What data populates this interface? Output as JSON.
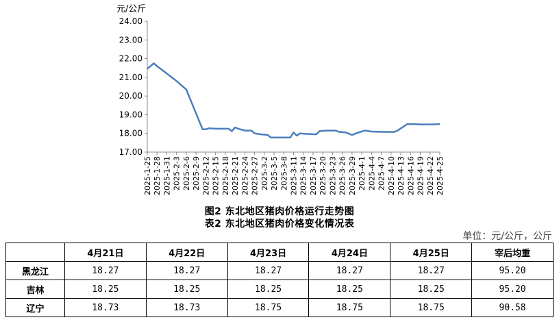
{
  "chart_data": {
    "type": "line",
    "ylabel": "元/公斤",
    "ylim": [
      17.0,
      24.0
    ],
    "yticks": [
      "24.00",
      "23.00",
      "22.00",
      "21.00",
      "20.00",
      "19.00",
      "18.00",
      "17.00"
    ],
    "x_ticks": [
      "2025-1-25",
      "2025-1-28",
      "2025-1-31",
      "2025-2-3",
      "2025-2-6",
      "2025-2-9",
      "2025-2-12",
      "2025-2-15",
      "2025-2-18",
      "2025-2-21",
      "2025-2-24",
      "2025-2-27",
      "2025-3-2",
      "2025-3-5",
      "2025-3-8",
      "2025-3-11",
      "2025-3-14",
      "2025-3-17",
      "2025-3-20",
      "2025-3-23",
      "2025-3-26",
      "2025-3-29",
      "2025-4-1",
      "2025-4-4",
      "2025-4-7",
      "2025-4-10",
      "2025-4-13",
      "2025-4-16",
      "2025-4-19",
      "2025-4-22",
      "2025-4-25"
    ],
    "color": "#4a7ebb",
    "series": [
      {
        "points": [
          [
            "2025-1-25",
            21.45
          ],
          [
            "2025-1-26",
            21.6
          ],
          [
            "2025-1-27",
            21.75
          ],
          [
            "2025-1-28",
            21.6
          ],
          [
            "2025-1-31",
            21.2
          ],
          [
            "2025-2-3",
            20.8
          ],
          [
            "2025-2-6",
            20.35
          ],
          [
            "2025-2-8",
            19.5
          ],
          [
            "2025-2-11",
            18.22
          ],
          [
            "2025-2-12",
            18.22
          ],
          [
            "2025-2-13",
            18.27
          ],
          [
            "2025-2-15",
            18.25
          ],
          [
            "2025-2-18",
            18.25
          ],
          [
            "2025-2-19",
            18.25
          ],
          [
            "2025-2-20",
            18.12
          ],
          [
            "2025-2-21",
            18.32
          ],
          [
            "2025-2-22",
            18.25
          ],
          [
            "2025-2-24",
            18.15
          ],
          [
            "2025-2-26",
            18.15
          ],
          [
            "2025-2-27",
            18.0
          ],
          [
            "2025-3-1",
            17.95
          ],
          [
            "2025-3-3",
            17.92
          ],
          [
            "2025-3-4",
            17.78
          ],
          [
            "2025-3-6",
            17.78
          ],
          [
            "2025-3-9",
            17.78
          ],
          [
            "2025-3-10",
            17.78
          ],
          [
            "2025-3-11",
            18.05
          ],
          [
            "2025-3-12",
            17.88
          ],
          [
            "2025-3-13",
            18.0
          ],
          [
            "2025-3-15",
            17.97
          ],
          [
            "2025-3-18",
            17.95
          ],
          [
            "2025-3-19",
            18.12
          ],
          [
            "2025-3-21",
            18.15
          ],
          [
            "2025-3-24",
            18.15
          ],
          [
            "2025-3-25",
            18.08
          ],
          [
            "2025-3-27",
            18.05
          ],
          [
            "2025-3-29",
            17.92
          ],
          [
            "2025-3-31",
            18.05
          ],
          [
            "2025-4-2",
            18.15
          ],
          [
            "2025-4-4",
            18.1
          ],
          [
            "2025-4-7",
            18.08
          ],
          [
            "2025-4-11",
            18.08
          ],
          [
            "2025-4-12",
            18.15
          ],
          [
            "2025-4-14",
            18.38
          ],
          [
            "2025-4-15",
            18.5
          ],
          [
            "2025-4-17",
            18.5
          ],
          [
            "2025-4-19",
            18.48
          ],
          [
            "2025-4-21",
            18.48
          ],
          [
            "2025-4-23",
            18.48
          ],
          [
            "2025-4-25",
            18.5
          ]
        ]
      }
    ]
  },
  "caption_figure": "图2  东北地区猪肉价格运行走势图",
  "caption_table": "表2  东北地区猪肉价格变化情况表",
  "unit": "单位：元/公斤，公斤",
  "table": {
    "headers": [
      "",
      "4月21日",
      "4月22日",
      "4月23日",
      "4月24日",
      "4月25日",
      "宰后均重"
    ],
    "rows": [
      [
        "黑龙江",
        "18.27",
        "18.27",
        "18.27",
        "18.27",
        "18.27",
        "95.20"
      ],
      [
        "吉林",
        "18.25",
        "18.25",
        "18.25",
        "18.25",
        "18.25",
        "95.20"
      ],
      [
        "辽宁",
        "18.73",
        "18.73",
        "18.75",
        "18.75",
        "18.75",
        "90.58"
      ]
    ]
  }
}
